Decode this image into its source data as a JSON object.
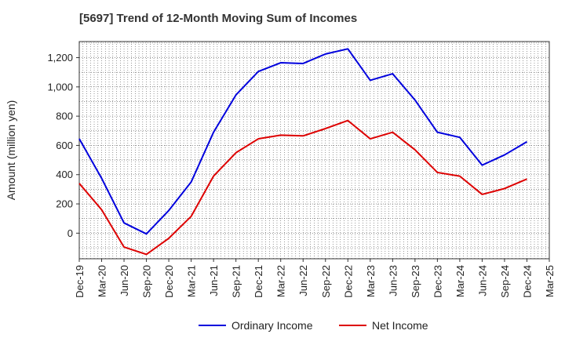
{
  "title": "[5697]  Trend of 12-Month Moving Sum of Incomes",
  "chart_data": {
    "type": "line",
    "title": "[5697]  Trend of 12-Month Moving Sum of Incomes",
    "xlabel": "",
    "ylabel": "Amount (million yen)",
    "ylim": [
      -175,
      1310
    ],
    "yticks": [
      0,
      200,
      400,
      600,
      800,
      1000,
      1200
    ],
    "ytick_labels": [
      "0",
      "200",
      "400",
      "600",
      "800",
      "1,000",
      "1,200"
    ],
    "categories": [
      "Dec-19",
      "Mar-20",
      "Jun-20",
      "Sep-20",
      "Dec-20",
      "Mar-21",
      "Jun-21",
      "Sep-21",
      "Dec-21",
      "Mar-22",
      "Jun-22",
      "Sep-22",
      "Dec-22",
      "Mar-23",
      "Jun-23",
      "Sep-23",
      "Dec-23",
      "Mar-24",
      "Jun-24",
      "Sep-24",
      "Dec-24",
      "Mar-25"
    ],
    "grid": true,
    "legend_position": "bottom",
    "series": [
      {
        "name": "Ordinary Income",
        "color": "#0000dd",
        "values": [
          645,
          375,
          70,
          -5,
          155,
          350,
          690,
          945,
          1105,
          1165,
          1160,
          1225,
          1260,
          1045,
          1090,
          910,
          690,
          655,
          465,
          535,
          625,
          null
        ]
      },
      {
        "name": "Net Income",
        "color": "#dd0000",
        "values": [
          340,
          160,
          -95,
          -145,
          -35,
          115,
          390,
          550,
          645,
          670,
          665,
          715,
          770,
          645,
          690,
          570,
          415,
          390,
          265,
          305,
          370,
          null
        ]
      }
    ]
  }
}
